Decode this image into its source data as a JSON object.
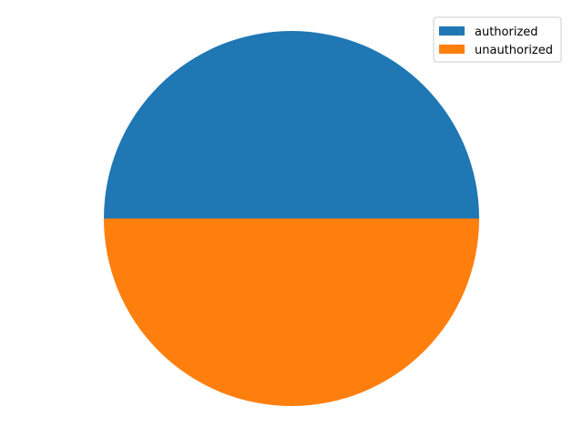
{
  "chart_data": {
    "type": "pie",
    "title": "",
    "categories": [
      "authorized",
      "unauthorized"
    ],
    "values": [
      50,
      50
    ],
    "colors": [
      "#1f77b4",
      "#ff7f0e"
    ],
    "start_angle_deg": 0,
    "direction": "counterclockwise",
    "legend": {
      "placement": "top-right",
      "entries": [
        "authorized",
        "unauthorized"
      ]
    }
  }
}
